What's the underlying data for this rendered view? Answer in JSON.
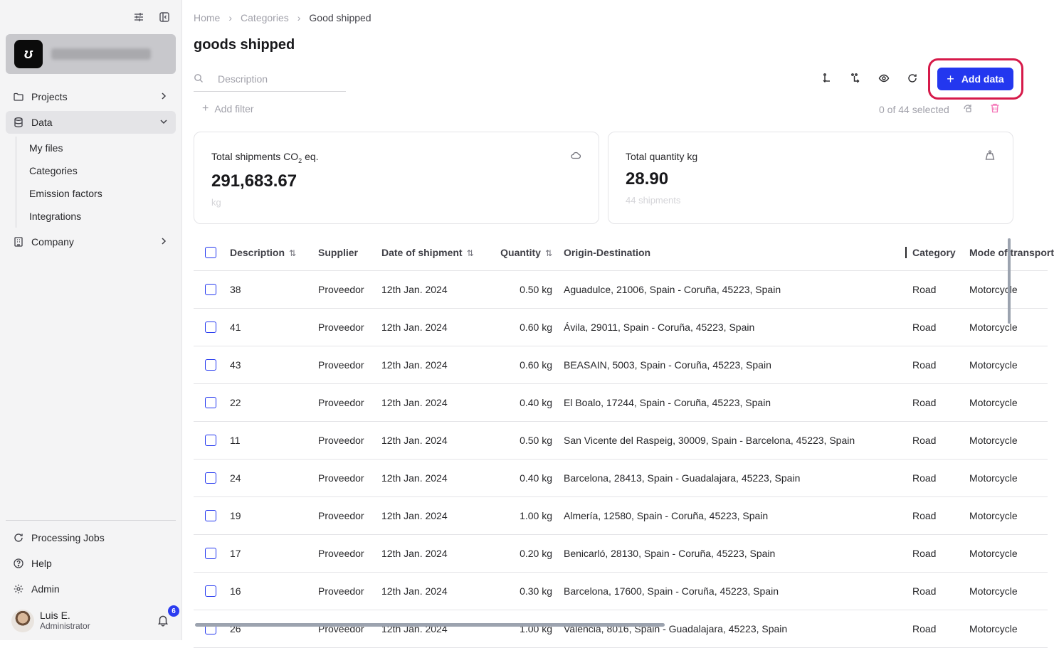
{
  "sidebar": {
    "nav": [
      {
        "label": "Projects",
        "icon": "folder-icon"
      },
      {
        "label": "Data",
        "icon": "database-icon"
      },
      {
        "label": "Company",
        "icon": "building-icon"
      }
    ],
    "data_sub": [
      "My files",
      "Categories",
      "Emission factors",
      "Integrations"
    ],
    "bottom": [
      {
        "label": "Processing Jobs",
        "icon": "refresh-icon"
      },
      {
        "label": "Help",
        "icon": "help-icon"
      },
      {
        "label": "Admin",
        "icon": "gear-icon"
      }
    ],
    "user": {
      "name": "Luis E.",
      "role": "Administrator",
      "notifications": "6"
    }
  },
  "breadcrumb": [
    "Home",
    "Categories",
    "Good shipped"
  ],
  "page_title": "goods shipped",
  "search": {
    "placeholder": "Description"
  },
  "add_button": "Add data",
  "add_filter": "Add filter",
  "selected_info": "0 of 44 selected",
  "cards": [
    {
      "title_pre": "Total shipments CO",
      "title_sub": "2",
      "title_post": " eq.",
      "value": "291,683.67",
      "sub": "kg"
    },
    {
      "title": "Total quantity kg",
      "value": "28.90",
      "sub": "44 shipments"
    }
  ],
  "table": {
    "headers": [
      "Description",
      "Supplier",
      "Date of shipment",
      "Quantity",
      "Origin-Destination",
      "Category",
      "Mode of transport"
    ],
    "rows": [
      {
        "description": "38",
        "supplier": "Proveedor",
        "date": "12th Jan. 2024",
        "quantity": "0.50 kg",
        "route": "Aguadulce, 21006, Spain - Coruña, 45223, Spain",
        "category": "Road",
        "mode": "Motorcycle"
      },
      {
        "description": "41",
        "supplier": "Proveedor",
        "date": "12th Jan. 2024",
        "quantity": "0.60 kg",
        "route": "Ávila, 29011, Spain - Coruña, 45223, Spain",
        "category": "Road",
        "mode": "Motorcycle"
      },
      {
        "description": "43",
        "supplier": "Proveedor",
        "date": "12th Jan. 2024",
        "quantity": "0.60 kg",
        "route": "BEASAIN, 5003, Spain - Coruña, 45223, Spain",
        "category": "Road",
        "mode": "Motorcycle"
      },
      {
        "description": "22",
        "supplier": "Proveedor",
        "date": "12th Jan. 2024",
        "quantity": "0.40 kg",
        "route": "El Boalo, 17244, Spain - Coruña, 45223, Spain",
        "category": "Road",
        "mode": "Motorcycle"
      },
      {
        "description": "11",
        "supplier": "Proveedor",
        "date": "12th Jan. 2024",
        "quantity": "0.50 kg",
        "route": "San Vicente del Raspeig, 30009, Spain - Barcelona, 45223, Spain",
        "category": "Road",
        "mode": "Motorcycle"
      },
      {
        "description": "24",
        "supplier": "Proveedor",
        "date": "12th Jan. 2024",
        "quantity": "0.40 kg",
        "route": "Barcelona, 28413, Spain - Guadalajara, 45223, Spain",
        "category": "Road",
        "mode": "Motorcycle"
      },
      {
        "description": "19",
        "supplier": "Proveedor",
        "date": "12th Jan. 2024",
        "quantity": "1.00 kg",
        "route": "Almería, 12580, Spain - Coruña, 45223, Spain",
        "category": "Road",
        "mode": "Motorcycle"
      },
      {
        "description": "17",
        "supplier": "Proveedor",
        "date": "12th Jan. 2024",
        "quantity": "0.20 kg",
        "route": "Benicarló, 28130, Spain - Coruña, 45223, Spain",
        "category": "Road",
        "mode": "Motorcycle"
      },
      {
        "description": "16",
        "supplier": "Proveedor",
        "date": "12th Jan. 2024",
        "quantity": "0.30 kg",
        "route": "Barcelona, 17600, Spain - Coruña, 45223, Spain",
        "category": "Road",
        "mode": "Motorcycle"
      },
      {
        "description": "26",
        "supplier": "Proveedor",
        "date": "12th Jan. 2024",
        "quantity": "1.00 kg",
        "route": "València, 8016, Spain - Guadalajara, 45223, Spain",
        "category": "Road",
        "mode": "Motorcycle"
      }
    ]
  },
  "colors": {
    "accent": "#2337ef",
    "highlight": "#d61a4a",
    "sidebar_bg": "#f4f4f5"
  }
}
